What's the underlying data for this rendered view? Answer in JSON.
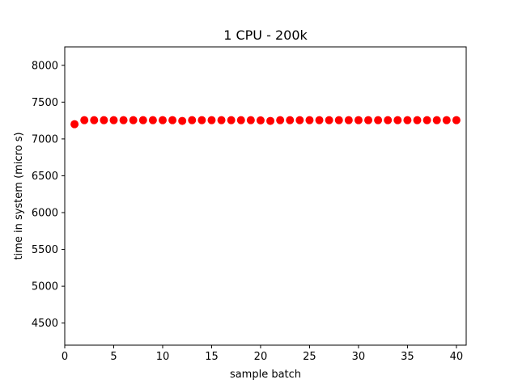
{
  "chart_data": {
    "type": "scatter",
    "title": "1 CPU - 200k",
    "xlabel": "sample batch",
    "ylabel": "time in system (micro s)",
    "xlim": [
      0,
      41
    ],
    "ylim": [
      4200,
      8250
    ],
    "xticks": [
      0,
      5,
      10,
      15,
      20,
      25,
      30,
      35,
      40
    ],
    "yticks": [
      4500,
      5000,
      5500,
      6000,
      6500,
      7000,
      7500,
      8000
    ],
    "marker_color": "#ff0000",
    "grid": false,
    "legend": "none",
    "series": [
      {
        "x": [
          1,
          2,
          3,
          4,
          5,
          6,
          7,
          8,
          9,
          10,
          11,
          12,
          13,
          14,
          15,
          16,
          17,
          18,
          19,
          20,
          21,
          22,
          23,
          24,
          25,
          26,
          27,
          28,
          29,
          30,
          31,
          32,
          33,
          34,
          35,
          36,
          37,
          38,
          39,
          40
        ],
        "values": [
          7200,
          7255,
          7255,
          7255,
          7255,
          7255,
          7255,
          7255,
          7255,
          7255,
          7255,
          7245,
          7255,
          7255,
          7255,
          7255,
          7255,
          7255,
          7255,
          7252,
          7245,
          7255,
          7255,
          7255,
          7255,
          7255,
          7255,
          7255,
          7255,
          7255,
          7255,
          7255,
          7255,
          7255,
          7255,
          7255,
          7255,
          7255,
          7255,
          7255
        ]
      }
    ]
  }
}
